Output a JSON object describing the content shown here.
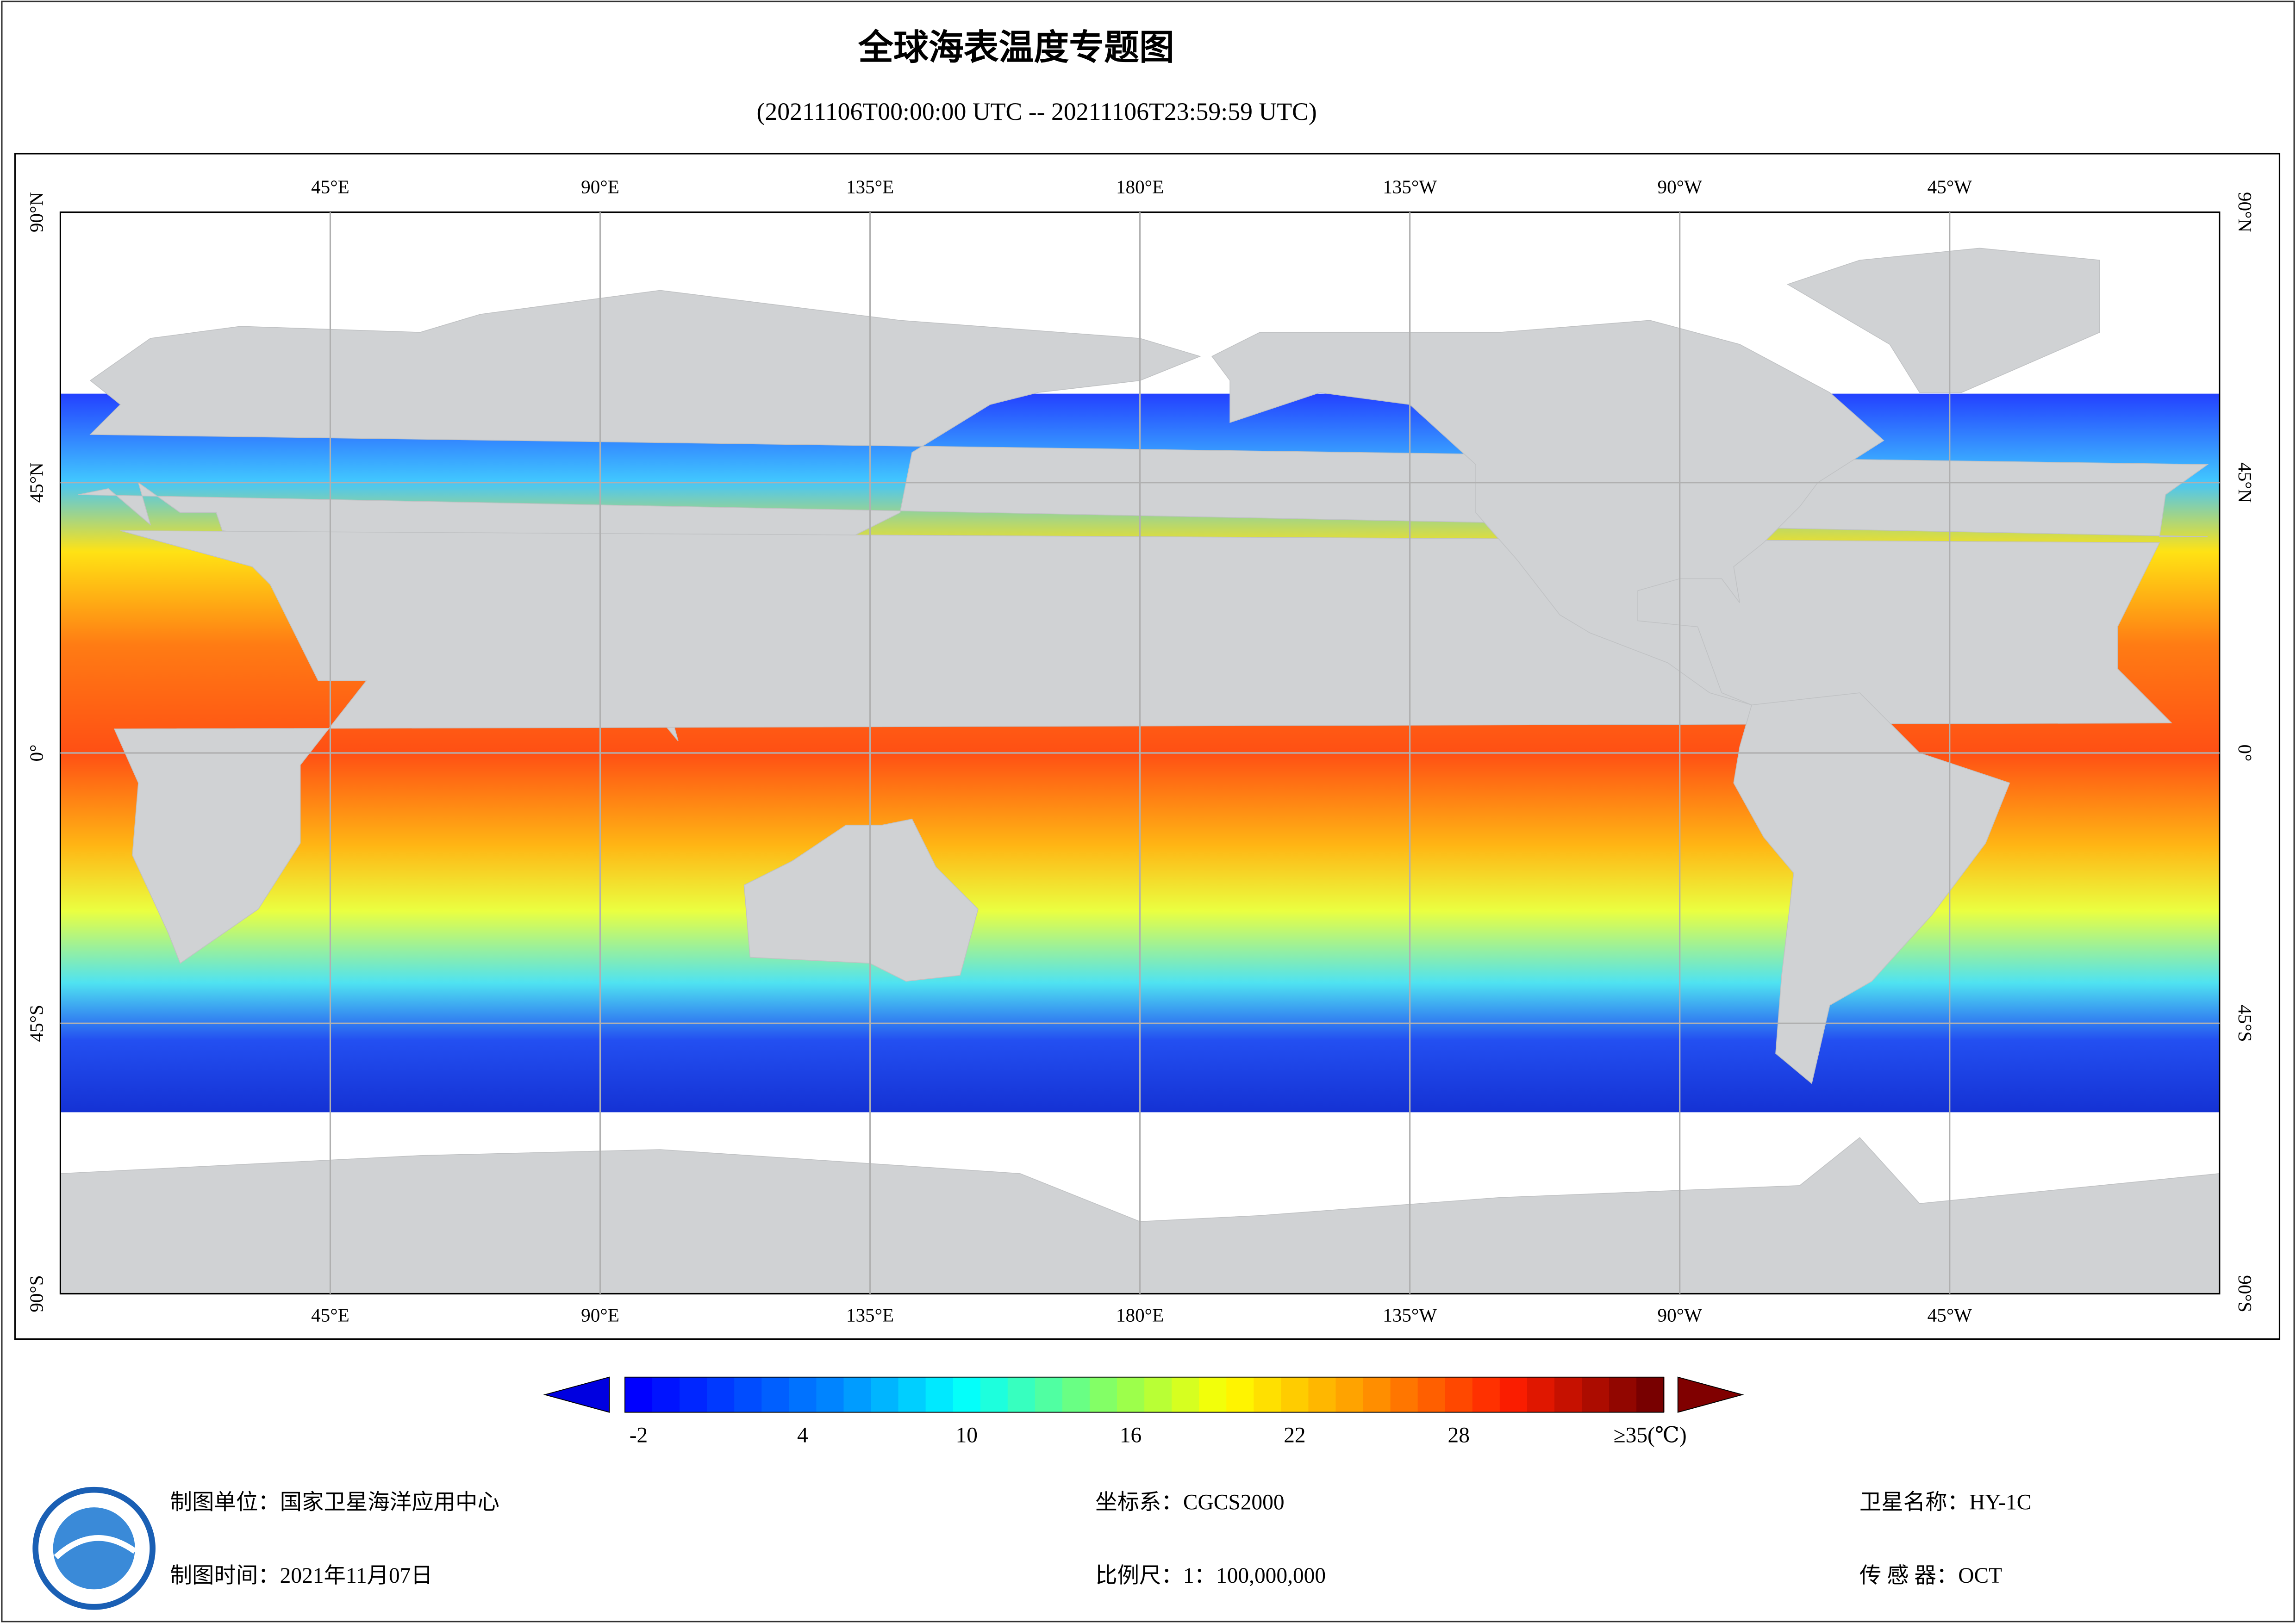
{
  "header": {
    "title": "全球海表温度专题图",
    "subtitle": "(20211106T00:00:00 UTC -- 20211106T23:59:59 UTC)"
  },
  "map": {
    "lon_labels": [
      "45°E",
      "90°E",
      "135°E",
      "180°E",
      "135°W",
      "90°W",
      "45°W"
    ],
    "lat_labels": [
      "90°N",
      "45°N",
      "0°",
      "45°S",
      "90°S"
    ]
  },
  "colorbar": {
    "ticks": [
      -2,
      4,
      10,
      16,
      22,
      28,
      {
        "value": 35,
        "label": "≥35(℃)"
      }
    ]
  },
  "footer": {
    "items": [
      "制图单位：国家卫星海洋应用中心",
      "制图时间：2021年11月07日",
      "坐标系：CGCS2000",
      "比例尺：1：100,000,000",
      "卫星名称：HY-1C",
      "传 感 器：OCT"
    ]
  }
}
